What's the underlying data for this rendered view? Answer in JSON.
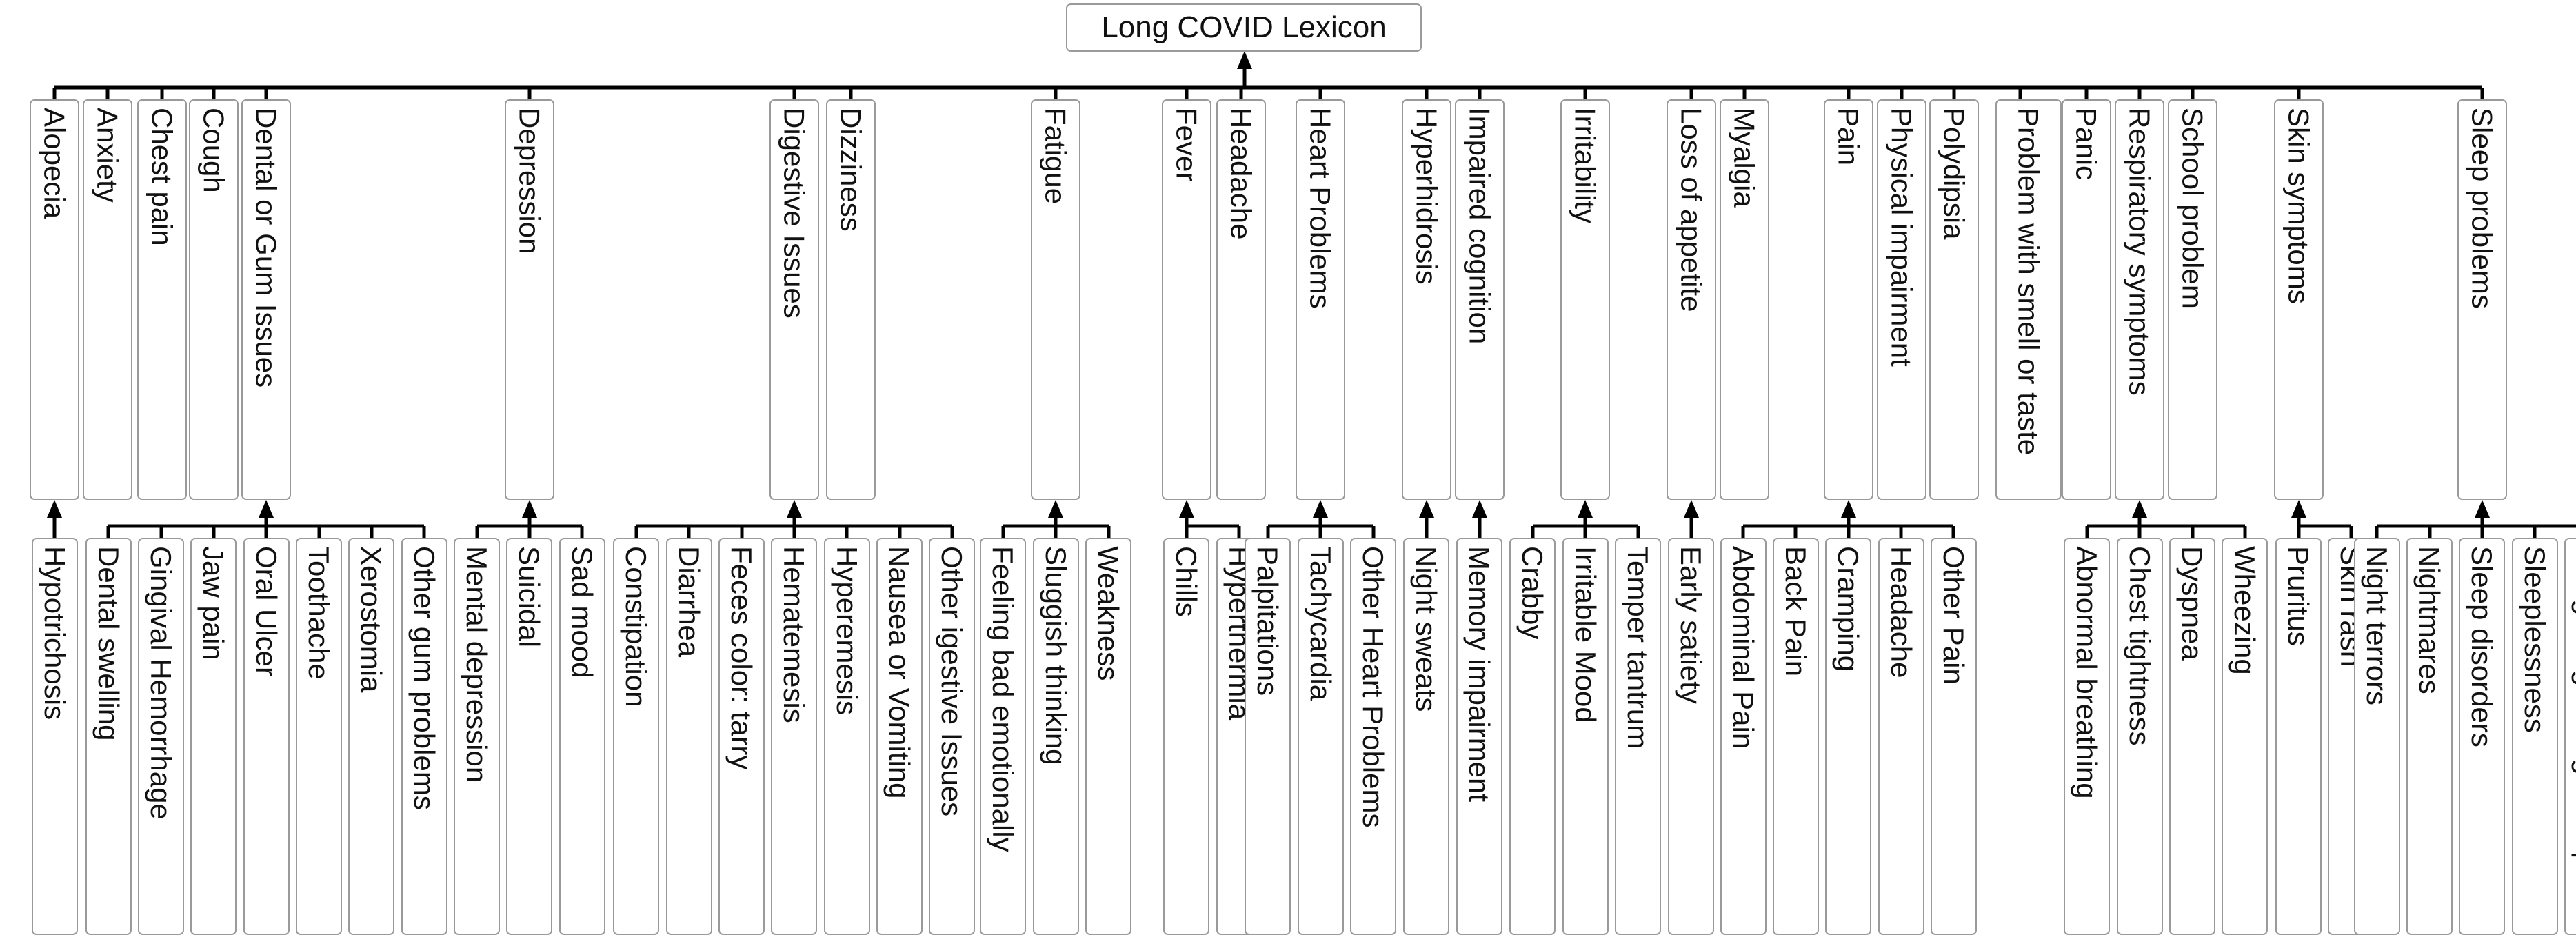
{
  "root": "Long COVID Lexicon",
  "colors": {
    "line": "#000000",
    "border": "#9a9a9a",
    "text": "#111111"
  },
  "categories": [
    {
      "label": "Alopecia",
      "children": [
        "Hypotrichosis"
      ]
    },
    {
      "label": "Anxiety",
      "children": []
    },
    {
      "label": "Chest pain",
      "children": []
    },
    {
      "label": "Cough",
      "children": []
    },
    {
      "label": "Dental or Gum Issues",
      "children": [
        "Dental swelling",
        "Gingival Hemorrhage",
        "Jaw pain",
        "Oral Ulcer",
        "Toothache",
        "Xerostomia",
        "Other gum problems"
      ]
    },
    {
      "label": "Depression",
      "children": [
        "Mental depression",
        "Suicidal",
        "Sad mood"
      ]
    },
    {
      "label": "Digestive Issues",
      "children": [
        "Constipation",
        "Diarrhea",
        "Feces color: tarry",
        "Hematemesis",
        "Hyperemesis",
        "Nausea or Vomiting",
        "Other igestive Issues"
      ]
    },
    {
      "label": "Dizziness",
      "children": []
    },
    {
      "label": "Fatigue",
      "children": [
        "Feeling bad emotionally",
        "Sluggish thinking",
        "Weakness"
      ]
    },
    {
      "label": "Fever",
      "children": [
        "Chills",
        "Hyperthermia"
      ]
    },
    {
      "label": "Headache",
      "children": []
    },
    {
      "label": "Heart Problems",
      "children": [
        "Palpitations",
        "Tachycardia",
        "Other Heart Problems"
      ]
    },
    {
      "label": "Hyperhidrosis",
      "children": [
        "Night sweats"
      ]
    },
    {
      "label": "Impaired cognition",
      "children": [
        "Memory impairment"
      ]
    },
    {
      "label": "Irritability",
      "children": [
        "Crabby",
        "Irritable Mood",
        "Temper tantrum"
      ]
    },
    {
      "label": "Loss of appetite",
      "children": [
        "Early satiety"
      ]
    },
    {
      "label": "Myalgia",
      "children": []
    },
    {
      "label": "Pain",
      "children": [
        "Abdominal Pain",
        "Back Pain",
        "Cramping",
        "Headache",
        "Other Pain"
      ]
    },
    {
      "label": "Physical impairment",
      "children": []
    },
    {
      "label": "Polydipsia",
      "children": []
    },
    {
      "label": "Problem with smell or taste",
      "children": []
    },
    {
      "label": "Panic",
      "children": []
    },
    {
      "label": "Respiratory symptoms",
      "children": [
        "Abnormal breathing",
        "Chest tightness",
        "Dyspnea",
        "Wheezing"
      ]
    },
    {
      "label": "School problem",
      "children": []
    },
    {
      "label": "Skin symptoms",
      "children": [
        "Pruritus",
        "Skin rash"
      ]
    },
    {
      "label": "Sleep problems",
      "children": [
        "Night terrors",
        "Nightmares",
        "Sleep disorders",
        "Sleeplessness",
        "Not getting enough sleep"
      ]
    }
  ]
}
